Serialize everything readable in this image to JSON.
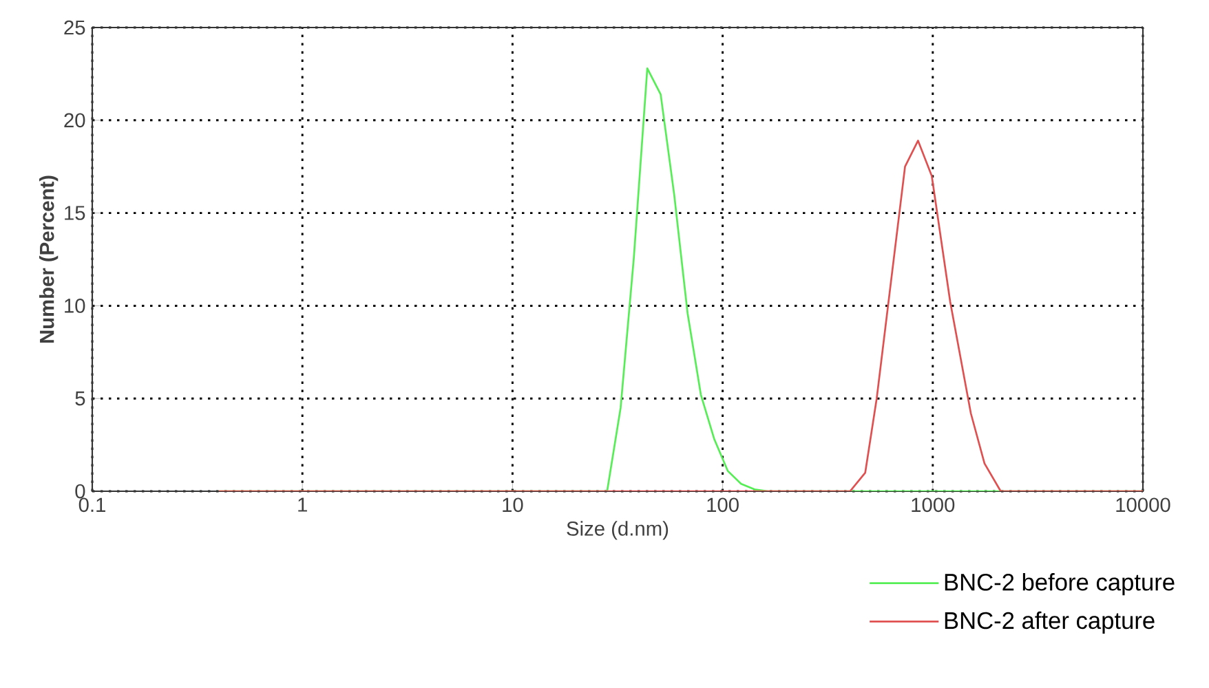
{
  "chart_data": {
    "type": "line",
    "xlabel": "Size (d.nm)",
    "ylabel": "Number (Percent)",
    "log": "x",
    "xlim": [
      0.1,
      10000
    ],
    "xticks": [
      0.1,
      1,
      10,
      100,
      1000,
      10000
    ],
    "ylim": [
      0,
      25
    ],
    "yticks": [
      0,
      5,
      10,
      15,
      20,
      25
    ],
    "grid": true,
    "legend": "bottom right",
    "series": [
      {
        "name": "BNC-2 before capture",
        "color": "#55ee55",
        "x": [
          0.4,
          28.2,
          32.7,
          37.8,
          43.8,
          50.7,
          58.8,
          68.1,
          78.8,
          91.3,
          105.7,
          122.4,
          141.8,
          164.2,
          10000
        ],
        "values": [
          0,
          0,
          4.5,
          12.6,
          22.8,
          21.4,
          16,
          9.6,
          5.2,
          2.8,
          1.1,
          0.4,
          0.1,
          0,
          0
        ]
      },
      {
        "name": "BNC-2 after capture",
        "color": "#e05050",
        "x": [
          0.4,
          404,
          477,
          541,
          738,
          851,
          989,
          1211,
          1518,
          1763,
          2105,
          10000
        ],
        "values": [
          0,
          0,
          1,
          5,
          17.5,
          18.9,
          17,
          10.2,
          4.2,
          1.5,
          0,
          0
        ]
      }
    ]
  }
}
